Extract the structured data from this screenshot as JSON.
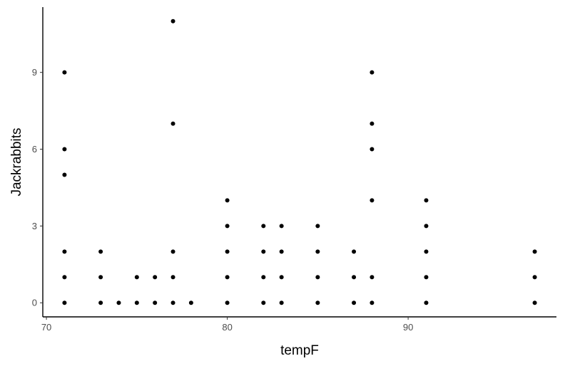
{
  "chart_data": {
    "type": "scatter",
    "title": "",
    "xlabel": "tempF",
    "ylabel": "Jackrabbits",
    "xlim": [
      69.8,
      98.2
    ],
    "ylim": [
      -0.55,
      11.55
    ],
    "x_ticks": [
      70,
      80,
      90
    ],
    "y_ticks": [
      0,
      3,
      6,
      9
    ],
    "x_tick_labels": [
      "70",
      "80",
      "90"
    ],
    "y_tick_labels": [
      "0",
      "3",
      "6",
      "9"
    ],
    "grid": false,
    "legend": "none",
    "point_color": "#000000",
    "points": [
      {
        "x": 71,
        "y": 0
      },
      {
        "x": 71,
        "y": 1
      },
      {
        "x": 71,
        "y": 2
      },
      {
        "x": 71,
        "y": 5
      },
      {
        "x": 71,
        "y": 6
      },
      {
        "x": 71,
        "y": 9
      },
      {
        "x": 73,
        "y": 0
      },
      {
        "x": 73,
        "y": 1
      },
      {
        "x": 73,
        "y": 2
      },
      {
        "x": 74,
        "y": 0
      },
      {
        "x": 75,
        "y": 0
      },
      {
        "x": 75,
        "y": 1
      },
      {
        "x": 76,
        "y": 0
      },
      {
        "x": 76,
        "y": 1
      },
      {
        "x": 77,
        "y": 0
      },
      {
        "x": 77,
        "y": 1
      },
      {
        "x": 77,
        "y": 2
      },
      {
        "x": 77,
        "y": 7
      },
      {
        "x": 77,
        "y": 11
      },
      {
        "x": 78,
        "y": 0
      },
      {
        "x": 80,
        "y": 0
      },
      {
        "x": 80,
        "y": 1
      },
      {
        "x": 80,
        "y": 2
      },
      {
        "x": 80,
        "y": 3
      },
      {
        "x": 80,
        "y": 4
      },
      {
        "x": 82,
        "y": 0
      },
      {
        "x": 82,
        "y": 1
      },
      {
        "x": 82,
        "y": 2
      },
      {
        "x": 82,
        "y": 3
      },
      {
        "x": 83,
        "y": 0
      },
      {
        "x": 83,
        "y": 1
      },
      {
        "x": 83,
        "y": 2
      },
      {
        "x": 83,
        "y": 3
      },
      {
        "x": 85,
        "y": 0
      },
      {
        "x": 85,
        "y": 1
      },
      {
        "x": 85,
        "y": 2
      },
      {
        "x": 85,
        "y": 3
      },
      {
        "x": 87,
        "y": 0
      },
      {
        "x": 87,
        "y": 1
      },
      {
        "x": 87,
        "y": 2
      },
      {
        "x": 88,
        "y": 0
      },
      {
        "x": 88,
        "y": 1
      },
      {
        "x": 88,
        "y": 4
      },
      {
        "x": 88,
        "y": 6
      },
      {
        "x": 88,
        "y": 7
      },
      {
        "x": 88,
        "y": 9
      },
      {
        "x": 91,
        "y": 0
      },
      {
        "x": 91,
        "y": 1
      },
      {
        "x": 91,
        "y": 2
      },
      {
        "x": 91,
        "y": 3
      },
      {
        "x": 91,
        "y": 4
      },
      {
        "x": 97,
        "y": 0
      },
      {
        "x": 97,
        "y": 1
      },
      {
        "x": 97,
        "y": 2
      }
    ]
  }
}
